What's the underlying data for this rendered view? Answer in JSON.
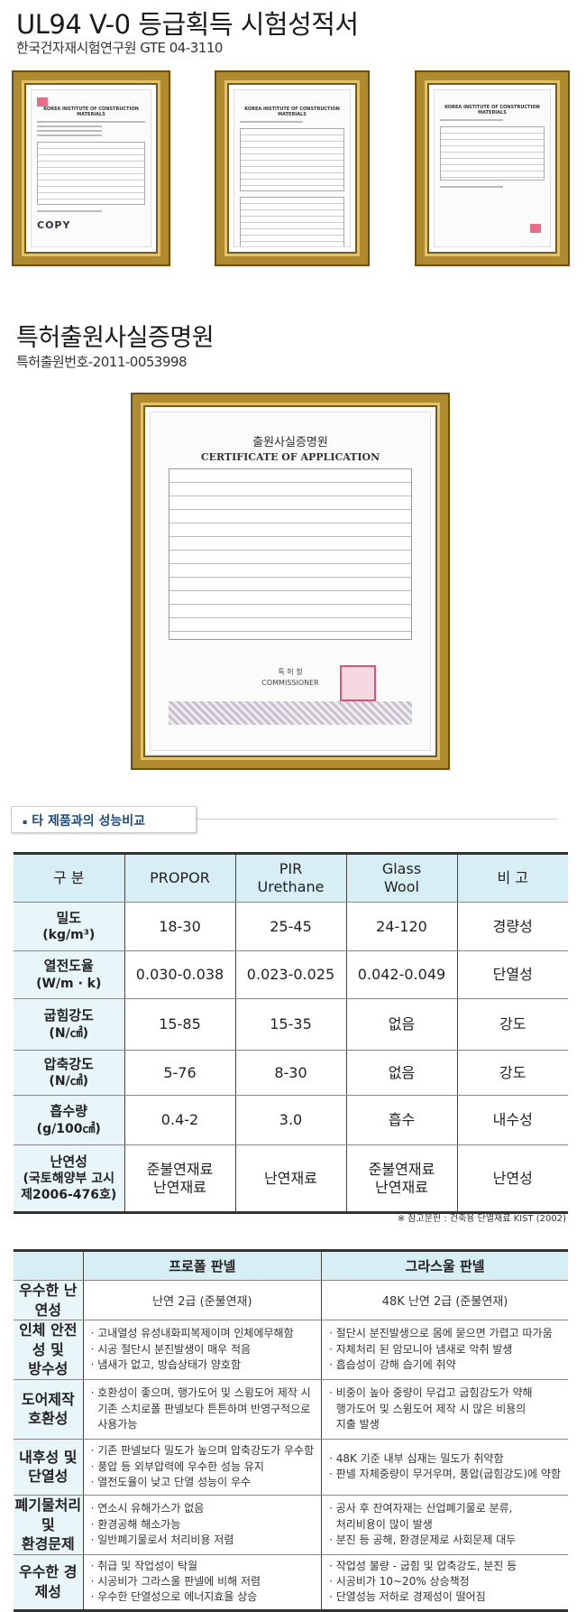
{
  "test_report": {
    "title": "UL94 V-0 등급획득 시험성적서",
    "subtitle": "한국건자재시험연구원 GTE 04-3110",
    "certificates": [
      {
        "org": "KOREA INSTITUTE OF CONSTRUCTION MATERIALS",
        "mark": "COPY"
      },
      {
        "org": "KOREA INSTITUTE OF CONSTRUCTION MATERIALS"
      },
      {
        "org": "KOREA INSTITUTE OF CONSTRUCTION MATERIALS"
      }
    ]
  },
  "patent": {
    "title": "특허출원사실증명원",
    "subtitle": "특허출원번호-2011-0053998",
    "certificate": {
      "title_ko": "출원사실증명원",
      "title_en": "CERTIFICATE OF APPLICATION",
      "issuer_ko": "특 허 청",
      "issuer_en": "COMMISSIONER"
    }
  },
  "comparison": {
    "section_title": "타 제품과의 성능비교",
    "headers": [
      "구  분",
      "PROPOR",
      "PIR\nUrethane",
      "Glass\nWool",
      "비  고"
    ],
    "rows": [
      {
        "label": "밀도",
        "unit": "(kg/m³)",
        "values": [
          "18-30",
          "25-45",
          "24-120",
          "경량성"
        ]
      },
      {
        "label": "열전도율",
        "unit": "(W/m · k)",
        "values": [
          "0.030-0.038",
          "0.023-0.025",
          "0.042-0.049",
          "단열성"
        ]
      },
      {
        "label": "굽힘강도",
        "unit": "(N/㎠)",
        "values": [
          "15-85",
          "15-35",
          "없음",
          "강도"
        ]
      },
      {
        "label": "압축강도",
        "unit": "(N/㎠)",
        "values": [
          "5-76",
          "8-30",
          "없음",
          "강도"
        ]
      },
      {
        "label": "흡수량",
        "unit": "(g/100㎠)",
        "values": [
          "0.4-2",
          "3.0",
          "흡수",
          "내수성"
        ]
      },
      {
        "label": "난연성",
        "unit": "(국토해양부 고시\n제2006-476호)",
        "values": [
          "준불연재료\n난연재료",
          "난연재료",
          "준불연재료\n난연재료",
          "난연성"
        ]
      }
    ],
    "note": "※ 참고문헌 : 건축용 단열재료 KIST (2002)"
  },
  "panel_comparison": {
    "headers": [
      "",
      "프로폴 판넬",
      "그라스울 판넬"
    ],
    "rows": [
      {
        "label": "우수한 난연성",
        "propor": [
          "난연 2급 (준불연재)"
        ],
        "glass": [
          "48K 난연 2급 (준불연재)"
        ]
      },
      {
        "label": "인체 안전성 및\n방수성",
        "propor": [
          "· 고내열성 유성내화피복제이며 인체에무해함",
          "· 시공 절단시 분진발생이 매우 적음",
          "· 냄새가 없고, 방습상태가 양호함"
        ],
        "glass": [
          "· 절단시 분진발생으로 몸에 묻으면 가렵고 따가움",
          "· 자체처리 된 암모니아 냄새로 악취 발생",
          "· 흡습성이 강해 습기에 취약"
        ]
      },
      {
        "label": "도어제작 호환성",
        "propor": [
          "· 호환성이 좋으며, 행가도어 및 스윙도어 제작 시",
          "  기존 스치로폴 판넬보다 튼튼하며 반영구적으로",
          "  사용가능"
        ],
        "glass": [
          "· 비중이 높아 중량이 무겁고 굽힘강도가 약해",
          "  행가도어 및 스윙도어 제작 시 많은 비용의",
          "  지출 발생"
        ]
      },
      {
        "label": "내후성 및 단열성",
        "propor": [
          "· 기존 판넬보다 밀도가 높으며 압축강도가 우수함",
          "· 풍압 등 외부압력에 우수한 성능 유지",
          "· 열전도율이 낮고 단열 성능이 우수"
        ],
        "glass": [
          "· 48K 기준 내부 심재는 밀도가 취약함",
          "· 판넬 자체중량이 무거우며, 풍압(굽힘강도)에 약함"
        ]
      },
      {
        "label": "폐기물처리 및\n환경문제",
        "propor": [
          "· 연소시 유해가스가 없음",
          "· 환경공해 해소가능",
          "· 일반폐기물로서 처리비용 저렴"
        ],
        "glass": [
          "· 공사 후 잔여자재는 산업폐기물로 분류,",
          "  처리비용이 많이 발생",
          "· 분진 등 공해, 환경문제로 사회문제 대두"
        ]
      },
      {
        "label": "우수한 경제성",
        "propor": [
          "· 취급 및 작업성이 탁월",
          "· 시공비가 그라스울 판넬에 비해 저렴",
          "· 우수한 단열성으로 에너지효율 상승"
        ],
        "glass": [
          "· 작업성 불량 - 굽힘 및 압축강도, 분진 등",
          "· 시공비가 10~20% 상승책정",
          "· 단열성능 저하로 경제성이 떨어짐"
        ]
      }
    ]
  },
  "colors": {
    "header_bg": "#d7eef5",
    "label_bg": "#e8f5f9",
    "frame_gold": "#b08a2e",
    "section_title": "#1f4d7a"
  }
}
